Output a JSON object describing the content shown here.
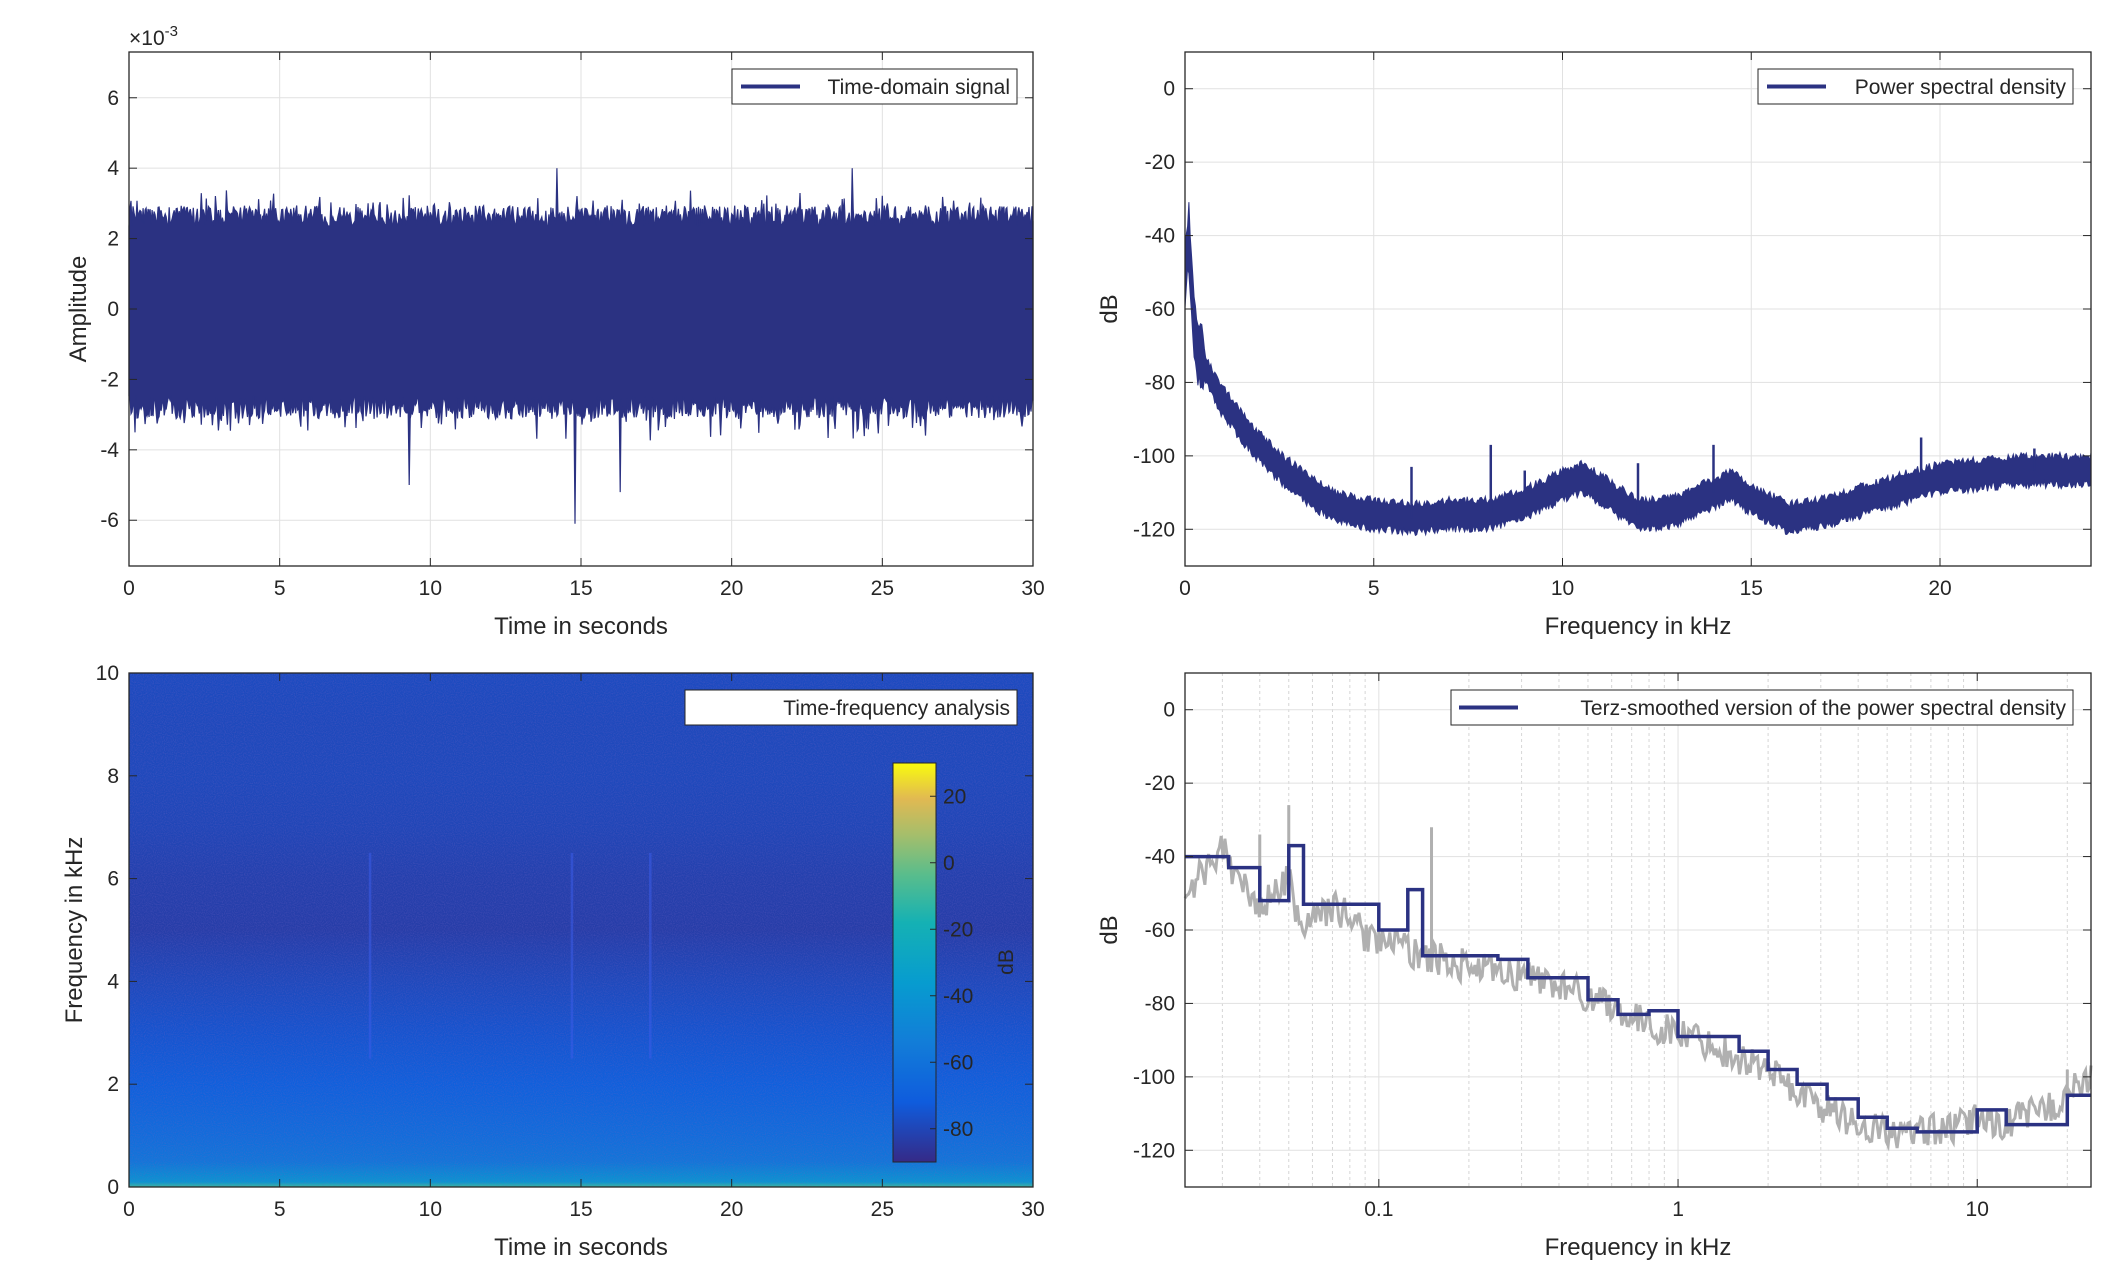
{
  "chart_data": [
    {
      "type": "line",
      "legend": "Time-domain signal",
      "legend_position": "top-right",
      "xlabel": "Time in seconds",
      "ylabel": "Amplitude",
      "yexponent_label": "×10",
      "yexponent_power": "-3",
      "xlim": [
        0,
        30
      ],
      "ylim": [
        -7.3,
        7.3
      ],
      "xticks": [
        0,
        5,
        10,
        15,
        20,
        25,
        30
      ],
      "yticks": [
        -6,
        -4,
        -2,
        0,
        2,
        4,
        6
      ],
      "grid": true,
      "color": "#2b3282",
      "signal": {
        "typical_envelope": 3.0,
        "min": -6.1,
        "max": 4.0,
        "unit_scale": 0.001
      }
    },
    {
      "type": "line",
      "legend": "Power spectral density",
      "legend_position": "top-right",
      "xlabel": "Frequency in kHz",
      "ylabel": "dB",
      "xlim": [
        0,
        24
      ],
      "ylim": [
        -130,
        10
      ],
      "xticks": [
        0,
        5,
        10,
        15,
        20
      ],
      "yticks": [
        0,
        -20,
        -40,
        -60,
        -80,
        -100,
        -120
      ],
      "grid": true,
      "color": "#2b3282",
      "x": [
        0,
        0.1,
        0.2,
        0.3,
        0.5,
        0.8,
        1,
        1.5,
        2,
        2.5,
        3,
        3.5,
        4,
        5,
        6,
        7,
        8,
        9,
        10,
        10.5,
        11,
        12,
        13,
        14,
        14.5,
        15,
        16,
        17,
        18,
        19,
        20,
        21,
        22,
        23,
        24
      ],
      "y": [
        -50,
        -40,
        -60,
        -70,
        -75,
        -82,
        -85,
        -92,
        -98,
        -103,
        -107,
        -111,
        -114,
        -116,
        -117,
        -116,
        -116,
        -113,
        -108,
        -106,
        -109,
        -116,
        -115,
        -110,
        -108,
        -112,
        -117,
        -115,
        -112,
        -109,
        -106,
        -105,
        -104,
        -104,
        -104
      ],
      "spikes": [
        {
          "x": 6.0,
          "y": -103
        },
        {
          "x": 8.1,
          "y": -97
        },
        {
          "x": 9.0,
          "y": -104
        },
        {
          "x": 12.0,
          "y": -102
        },
        {
          "x": 14.0,
          "y": -97
        },
        {
          "x": 19.5,
          "y": -95
        },
        {
          "x": 22.5,
          "y": -98
        }
      ]
    },
    {
      "type": "heatmap",
      "legend": "Time-frequency analysis",
      "legend_position": "top-right",
      "xlabel": "Time in seconds",
      "ylabel": "Frequency in kHz",
      "xlim": [
        0,
        30
      ],
      "ylim": [
        0,
        10
      ],
      "xticks": [
        0,
        5,
        10,
        15,
        20,
        25,
        30
      ],
      "yticks": [
        0,
        2,
        4,
        6,
        8,
        10
      ],
      "colorbar": {
        "label": "dB",
        "limits": [
          -90,
          30
        ],
        "ticks": [
          20,
          0,
          -20,
          -40,
          -60,
          -80
        ],
        "colormap": "parula"
      },
      "freq_profile_db": [
        {
          "f": 0,
          "db": -10
        },
        {
          "f": 0.1,
          "db": -40
        },
        {
          "f": 0.5,
          "db": -58
        },
        {
          "f": 1,
          "db": -63
        },
        {
          "f": 2,
          "db": -70
        },
        {
          "f": 3,
          "db": -75
        },
        {
          "f": 4,
          "db": -79
        },
        {
          "f": 5,
          "db": -83
        },
        {
          "f": 6,
          "db": -82
        },
        {
          "f": 7,
          "db": -80
        },
        {
          "f": 8,
          "db": -79
        },
        {
          "f": 9,
          "db": -79
        },
        {
          "f": 10,
          "db": -78
        }
      ],
      "events_seconds": [
        8,
        14.7,
        17.3
      ]
    },
    {
      "type": "line",
      "legend": "Terz-smoothed version of the power spectral density",
      "legend_position": "top-right",
      "xlabel": "Frequency in kHz",
      "ylabel": "dB",
      "xscale": "log",
      "xlim": [
        0.0225,
        24
      ],
      "ylim": [
        -130,
        10
      ],
      "xticks": [
        0.1,
        1,
        10
      ],
      "xticklabels": [
        "0.1",
        "1",
        "10"
      ],
      "yticks": [
        0,
        -20,
        -40,
        -60,
        -80,
        -100,
        -120
      ],
      "grid": true,
      "series": [
        {
          "style": "raw",
          "color": "#b0b0b0",
          "x": [
            0.0225,
            0.025,
            0.028,
            0.03,
            0.032,
            0.035,
            0.04,
            0.045,
            0.05,
            0.055,
            0.06,
            0.07,
            0.08,
            0.09,
            0.1,
            0.12,
            0.14,
            0.16,
            0.2,
            0.25,
            0.3,
            0.4,
            0.5,
            0.6,
            0.7,
            0.8,
            1,
            1.2,
            1.5,
            2,
            2.5,
            3,
            4,
            5,
            6,
            7,
            8,
            10,
            12,
            15,
            18,
            20,
            24
          ],
          "y": [
            -52,
            -45,
            -42,
            -36,
            -44,
            -48,
            -54,
            -50,
            -46,
            -60,
            -56,
            -54,
            -56,
            -62,
            -62,
            -65,
            -67,
            -68,
            -70,
            -72,
            -72,
            -75,
            -78,
            -80,
            -84,
            -86,
            -88,
            -90,
            -94,
            -98,
            -104,
            -108,
            -113,
            -115,
            -116,
            -114,
            -115,
            -111,
            -113,
            -110,
            -108,
            -104,
            -101
          ]
        },
        {
          "style": "terz",
          "color": "#2b3282",
          "x": [
            0.0225,
            0.025,
            0.0315,
            0.04,
            0.045,
            0.05,
            0.056,
            0.063,
            0.08,
            0.1,
            0.112,
            0.125,
            0.14,
            0.16,
            0.2,
            0.25,
            0.315,
            0.4,
            0.5,
            0.63,
            0.8,
            1,
            1.25,
            1.6,
            2,
            2.5,
            3.15,
            4,
            5,
            6.3,
            8,
            10,
            12.5,
            16,
            20,
            24
          ],
          "y": [
            -40,
            -40,
            -43,
            -52,
            -52,
            -37,
            -53,
            -53,
            -53,
            -60,
            -60,
            -49,
            -67,
            -67,
            -67,
            -68,
            -73,
            -73,
            -79,
            -83,
            -82,
            -89,
            -89,
            -93,
            -98,
            -102,
            -106,
            -111,
            -114,
            -115,
            -115,
            -109,
            -113,
            -113,
            -105,
            -105
          ]
        }
      ],
      "spikes": [
        {
          "x": 0.05,
          "y": -26
        },
        {
          "x": 0.15,
          "y": -32
        },
        {
          "x": 0.04,
          "y": -34
        },
        {
          "x": 11,
          "y": -110
        },
        {
          "x": 20,
          "y": -98
        }
      ]
    }
  ]
}
